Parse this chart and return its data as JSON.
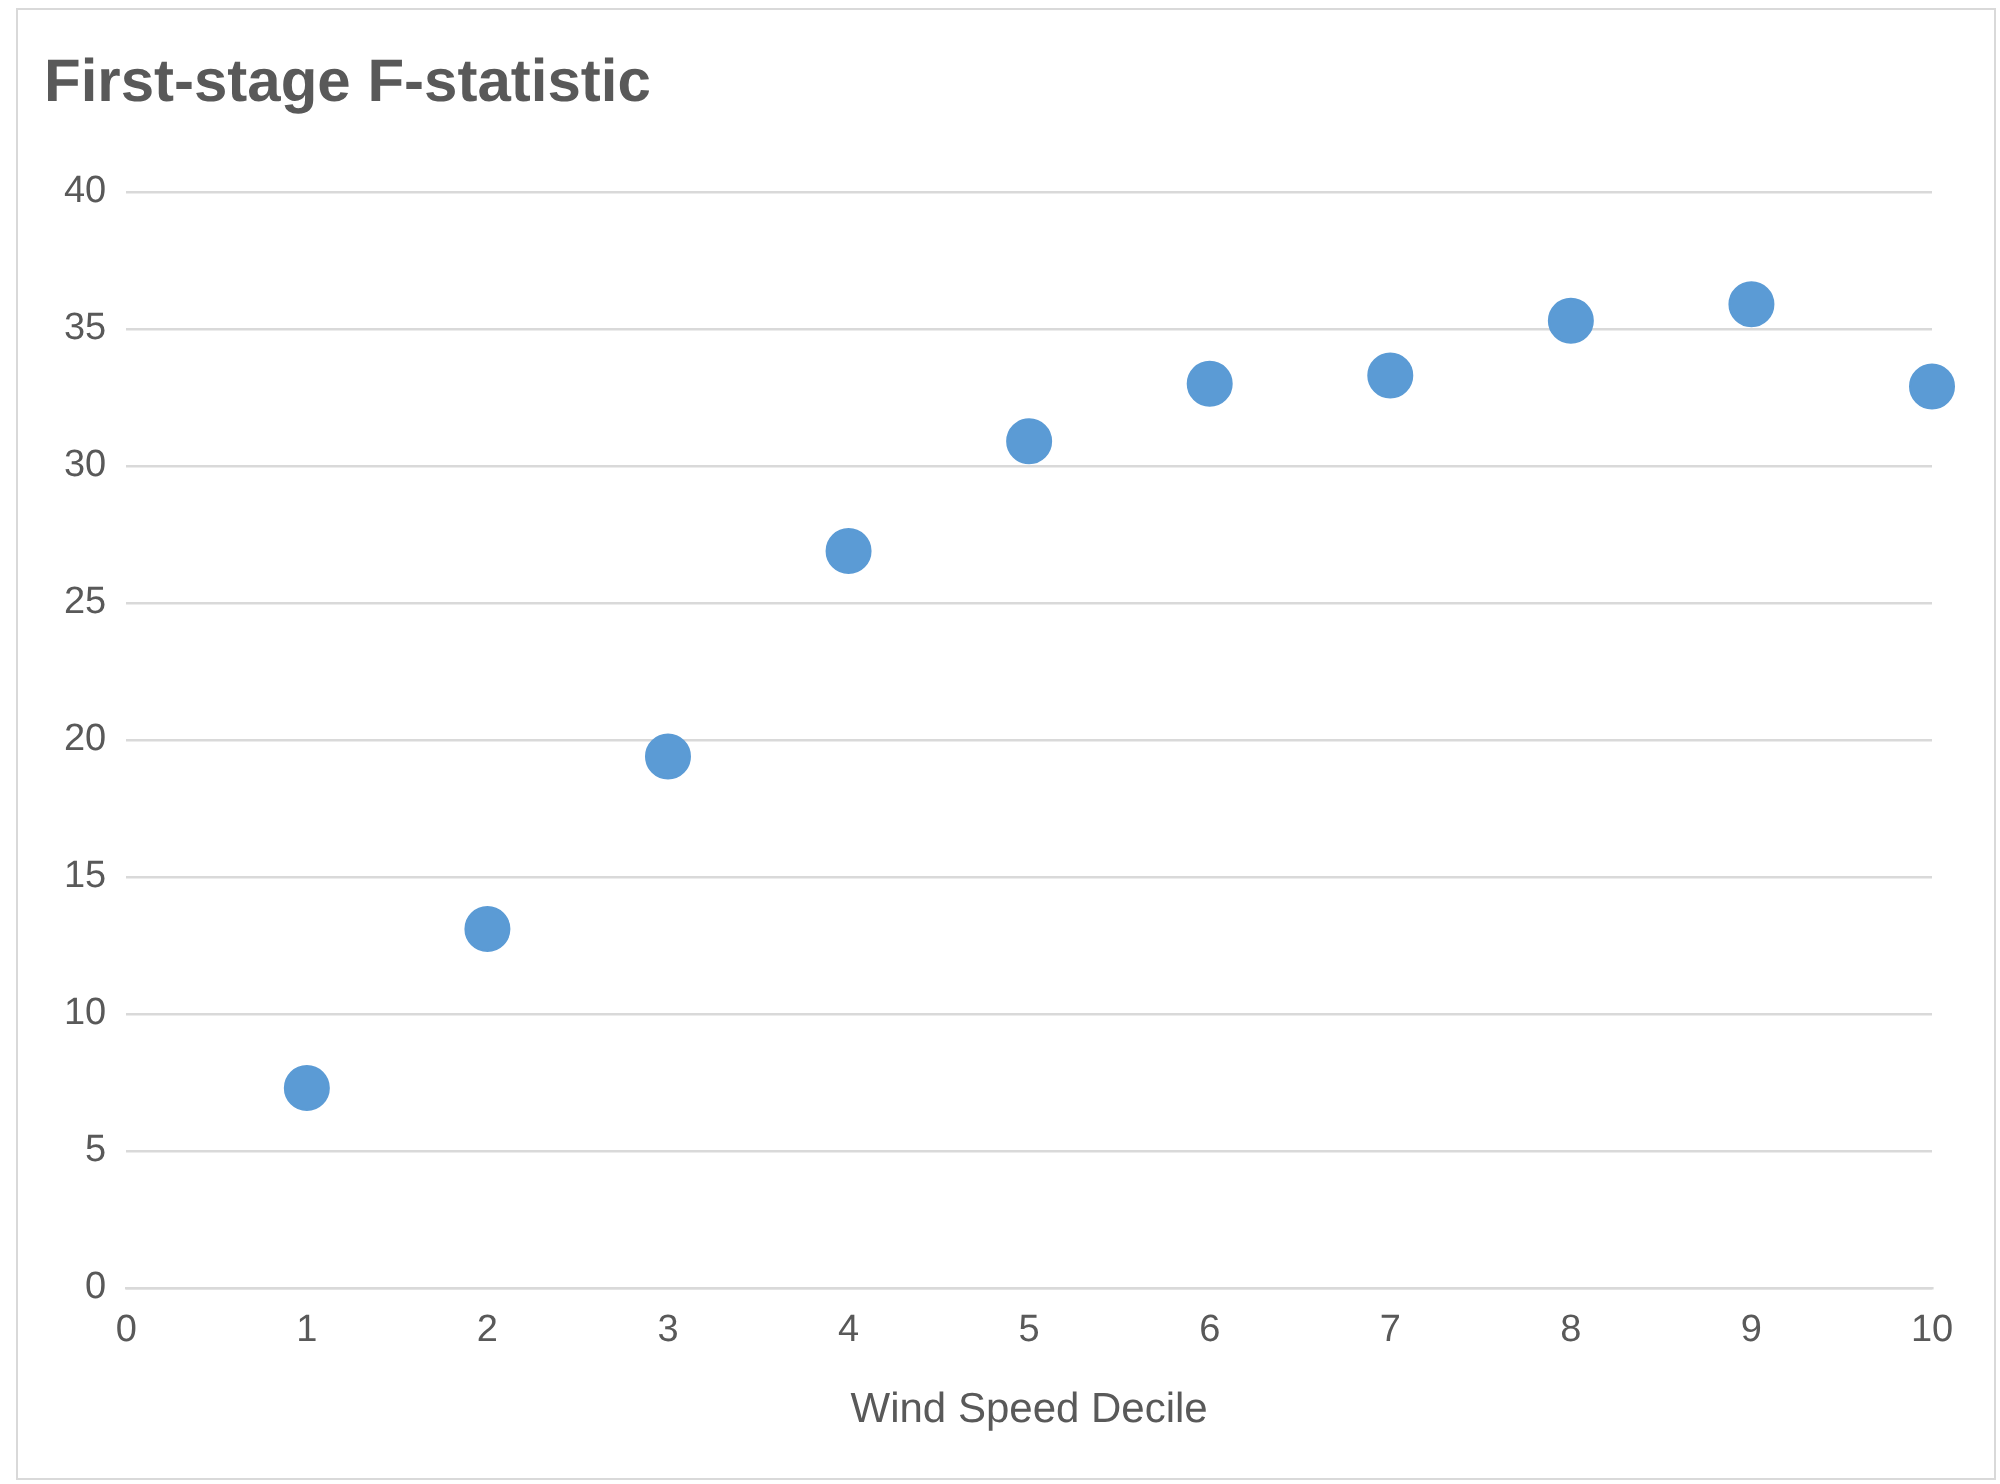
{
  "chart_data": {
    "type": "scatter",
    "title": "First-stage F-statistic",
    "xlabel": "Wind Speed Decile",
    "x": [
      1,
      2,
      3,
      4,
      5,
      6,
      7,
      8,
      9,
      10
    ],
    "series": [
      {
        "color": "#5b9bd5",
        "values": [
          7.3,
          13.1,
          19.4,
          26.9,
          30.9,
          33.0,
          33.3,
          35.3,
          35.9,
          32.9
        ]
      }
    ],
    "xlim": [
      0,
      10
    ],
    "xticks": [
      0,
      1,
      2,
      3,
      4,
      5,
      6,
      7,
      8,
      9,
      10
    ],
    "ylim": [
      0,
      40
    ],
    "yticks": [
      0,
      5,
      10,
      15,
      20,
      25,
      30,
      35,
      40
    ],
    "grid": "y",
    "legend": false,
    "marker": "circle"
  }
}
